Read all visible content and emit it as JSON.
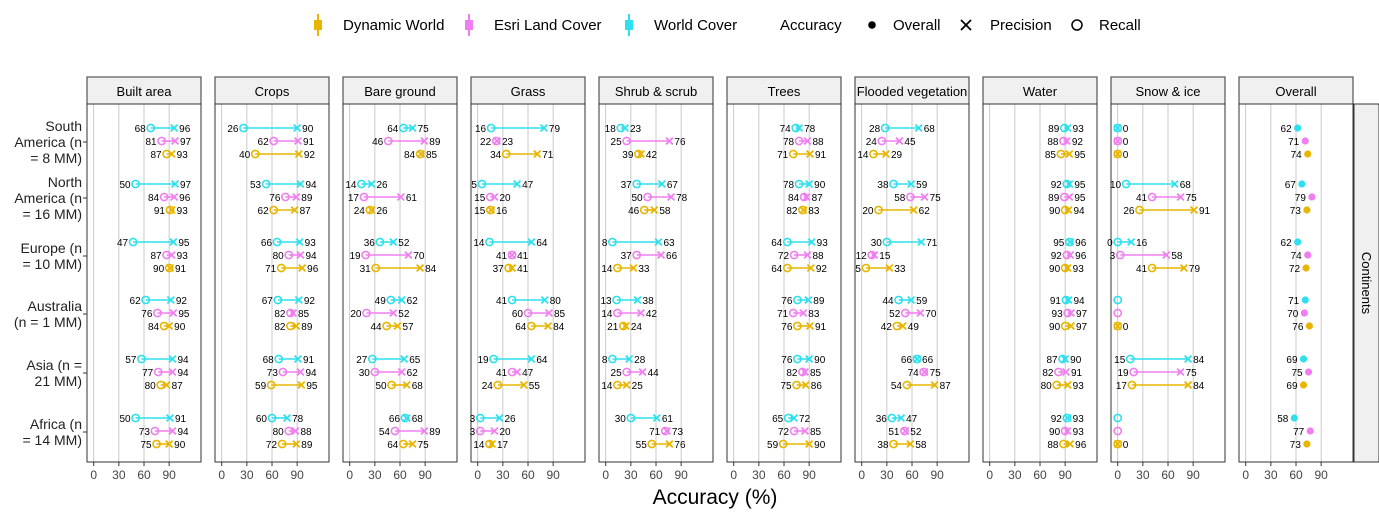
{
  "colors": {
    "dynamic": "#e8b500",
    "esri": "#f07ef0",
    "wc": "#2ee0ee",
    "grid": "#bdbdbd",
    "strip": "#f0f0f0"
  },
  "legend": {
    "datasets": [
      "Dynamic World",
      "Esri Land Cover",
      "World Cover"
    ],
    "accuracy_title": "Accuracy",
    "measures": [
      "Overall",
      "Precision",
      "Recall"
    ]
  },
  "xlabel": "Accuracy (%)",
  "facet_label": "Continents",
  "chart_data": {
    "type": "scatter",
    "xlabel": "Accuracy (%)",
    "xlim": [
      0,
      100
    ],
    "xticks": [
      0,
      30,
      60,
      90
    ],
    "grid": true,
    "legend_position": "top",
    "series": [
      {
        "name": "Dynamic World",
        "color": "#e8b500"
      },
      {
        "name": "Esri Land Cover",
        "color": "#f07ef0"
      },
      {
        "name": "World Cover",
        "color": "#2ee0ee"
      }
    ],
    "measures": [
      "Overall",
      "Precision",
      "Recall"
    ],
    "classes": [
      "Built area",
      "Crops",
      "Bare ground",
      "Grass",
      "Shrub & scrub",
      "Trees",
      "Flooded vegetation",
      "Water",
      "Snow & ice",
      "Overall"
    ],
    "regions": [
      "South America (n = 8 MM)",
      "North America (n = 16 MM)",
      "Europe (n = 10 MM)",
      "Australia (n = 1 MM)",
      "Asia (n = 21 MM)",
      "Africa (n = 14 MM)"
    ],
    "region_label_lines": [
      [
        "South",
        "America (n",
        "= 8 MM)"
      ],
      [
        "North",
        "America (n",
        "= 16 MM)"
      ],
      [
        "Europe (n",
        "= 10 MM)"
      ],
      [
        "Australia",
        "(n = 1 MM)"
      ],
      [
        "Asia (n =",
        "21 MM)"
      ],
      [
        "Africa (n",
        "= 14 MM)"
      ]
    ],
    "panels": [
      {
        "class": "Built area",
        "rows": [
          {
            "wc": [
              68,
              96
            ],
            "esri": [
              81,
              97
            ],
            "dw": [
              87,
              93
            ]
          },
          {
            "wc": [
              50,
              97
            ],
            "esri": [
              84,
              96
            ],
            "dw": [
              91,
              93
            ]
          },
          {
            "wc": [
              47,
              95
            ],
            "esri": [
              87,
              93
            ],
            "dw": [
              90,
              91
            ]
          },
          {
            "wc": [
              62,
              92
            ],
            "esri": [
              76,
              95
            ],
            "dw": [
              84,
              90
            ]
          },
          {
            "wc": [
              57,
              94
            ],
            "esri": [
              77,
              94
            ],
            "dw": [
              80,
              87
            ]
          },
          {
            "wc": [
              50,
              91
            ],
            "esri": [
              73,
              94
            ],
            "dw": [
              75,
              90
            ]
          }
        ]
      },
      {
        "class": "Crops",
        "rows": [
          {
            "wc": [
              26,
              90
            ],
            "esri": [
              62,
              91
            ],
            "dw": [
              40,
              92
            ]
          },
          {
            "wc": [
              53,
              94
            ],
            "esri": [
              76,
              89
            ],
            "dw": [
              62,
              87
            ]
          },
          {
            "wc": [
              66,
              93
            ],
            "esri": [
              80,
              94
            ],
            "dw": [
              71,
              96
            ]
          },
          {
            "wc": [
              67,
              92
            ],
            "esri": [
              82,
              85
            ],
            "dw": [
              82,
              89
            ]
          },
          {
            "wc": [
              68,
              91
            ],
            "esri": [
              73,
              94
            ],
            "dw": [
              59,
              95
            ]
          },
          {
            "wc": [
              60,
              78
            ],
            "esri": [
              80,
              88
            ],
            "dw": [
              72,
              89
            ]
          }
        ]
      },
      {
        "class": "Bare ground",
        "rows": [
          {
            "wc": [
              64,
              75
            ],
            "esri": [
              46,
              89
            ],
            "dw": [
              84,
              85
            ]
          },
          {
            "wc": [
              14,
              26
            ],
            "esri": [
              17,
              61
            ],
            "dw": [
              24,
              26
            ]
          },
          {
            "wc": [
              36,
              52
            ],
            "esri": [
              19,
              70
            ],
            "dw": [
              31,
              84
            ]
          },
          {
            "wc": [
              49,
              62
            ],
            "esri": [
              20,
              52
            ],
            "dw": [
              44,
              57
            ]
          },
          {
            "wc": [
              27,
              65
            ],
            "esri": [
              30,
              62
            ],
            "dw": [
              50,
              68
            ]
          },
          {
            "wc": [
              66,
              68
            ],
            "esri": [
              54,
              89
            ],
            "dw": [
              64,
              75
            ]
          }
        ]
      },
      {
        "class": "Grass",
        "rows": [
          {
            "wc": [
              16,
              79
            ],
            "esri": [
              22,
              23
            ],
            "dw": [
              34,
              71
            ]
          },
          {
            "wc": [
              5,
              47
            ],
            "esri": [
              15,
              20
            ],
            "dw": [
              15,
              16
            ]
          },
          {
            "wc": [
              14,
              64
            ],
            "esri": [
              41,
              41
            ],
            "dw": [
              37,
              41
            ]
          },
          {
            "wc": [
              41,
              80
            ],
            "esri": [
              60,
              85
            ],
            "dw": [
              64,
              84
            ]
          },
          {
            "wc": [
              19,
              64
            ],
            "esri": [
              41,
              47
            ],
            "dw": [
              24,
              55
            ]
          },
          {
            "wc": [
              3,
              26
            ],
            "esri": [
              3,
              20
            ],
            "dw": [
              14,
              17
            ]
          }
        ]
      },
      {
        "class": "Shrub & scrub",
        "rows": [
          {
            "wc": [
              18,
              23
            ],
            "esri": [
              25,
              76
            ],
            "dw": [
              39,
              42
            ]
          },
          {
            "wc": [
              37,
              67
            ],
            "esri": [
              50,
              78
            ],
            "dw": [
              46,
              58
            ]
          },
          {
            "wc": [
              8,
              63
            ],
            "esri": [
              37,
              66
            ],
            "dw": [
              14,
              33
            ]
          },
          {
            "wc": [
              13,
              38
            ],
            "esri": [
              14,
              42
            ],
            "dw": [
              21,
              24
            ]
          },
          {
            "wc": [
              8,
              28
            ],
            "esri": [
              25,
              44
            ],
            "dw": [
              14,
              25
            ]
          },
          {
            "wc": [
              30,
              61
            ],
            "esri": [
              71,
              73
            ],
            "dw": [
              55,
              76
            ]
          }
        ]
      },
      {
        "class": "Trees",
        "rows": [
          {
            "wc": [
              74,
              78
            ],
            "esri": [
              78,
              88
            ],
            "dw": [
              71,
              91
            ]
          },
          {
            "wc": [
              78,
              90
            ],
            "esri": [
              84,
              87
            ],
            "dw": [
              82,
              83
            ]
          },
          {
            "wc": [
              64,
              93
            ],
            "esri": [
              72,
              88
            ],
            "dw": [
              64,
              92
            ]
          },
          {
            "wc": [
              76,
              89
            ],
            "esri": [
              71,
              83
            ],
            "dw": [
              76,
              91
            ]
          },
          {
            "wc": [
              76,
              90
            ],
            "esri": [
              82,
              85
            ],
            "dw": [
              75,
              86
            ]
          },
          {
            "wc": [
              65,
              72
            ],
            "esri": [
              72,
              85
            ],
            "dw": [
              59,
              90
            ]
          }
        ]
      },
      {
        "class": "Flooded vegetation",
        "rows": [
          {
            "wc": [
              28,
              68
            ],
            "esri": [
              24,
              45
            ],
            "dw": [
              14,
              29
            ]
          },
          {
            "wc": [
              38,
              59
            ],
            "esri": [
              58,
              75
            ],
            "dw": [
              20,
              62
            ]
          },
          {
            "wc": [
              30,
              71
            ],
            "esri": [
              12,
              15
            ],
            "dw": [
              5,
              33
            ]
          },
          {
            "wc": [
              44,
              59
            ],
            "esri": [
              52,
              70
            ],
            "dw": [
              42,
              49
            ]
          },
          {
            "wc": [
              66,
              66
            ],
            "esri": [
              74,
              75
            ],
            "dw": [
              54,
              87
            ]
          },
          {
            "wc": [
              36,
              47
            ],
            "esri": [
              51,
              52
            ],
            "dw": [
              38,
              58
            ]
          }
        ]
      },
      {
        "class": "Water",
        "rows": [
          {
            "wc": [
              89,
              93
            ],
            "esri": [
              88,
              92
            ],
            "dw": [
              85,
              95
            ]
          },
          {
            "wc": [
              92,
              95
            ],
            "esri": [
              89,
              95
            ],
            "dw": [
              90,
              94
            ]
          },
          {
            "wc": [
              95,
              96
            ],
            "esri": [
              92,
              96
            ],
            "dw": [
              90,
              93
            ]
          },
          {
            "wc": [
              91,
              94
            ],
            "esri": [
              93,
              97
            ],
            "dw": [
              90,
              97
            ]
          },
          {
            "wc": [
              87,
              90
            ],
            "esri": [
              82,
              91
            ],
            "dw": [
              80,
              93
            ]
          },
          {
            "wc": [
              92,
              93
            ],
            "esri": [
              90,
              93
            ],
            "dw": [
              88,
              96
            ]
          }
        ]
      },
      {
        "class": "Snow & ice",
        "rows": [
          {
            "wc": [
              0,
              0
            ],
            "esri": [
              0,
              0
            ],
            "dw": [
              0,
              0
            ]
          },
          {
            "wc": [
              10,
              68
            ],
            "esri": [
              41,
              75
            ],
            "dw": [
              26,
              91
            ]
          },
          {
            "wc": [
              0,
              16
            ],
            "esri": [
              3,
              58
            ],
            "dw": [
              41,
              79
            ]
          },
          {
            "wc": [
              0,
              null
            ],
            "esri": [
              0,
              null
            ],
            "dw": [
              0,
              0
            ]
          },
          {
            "wc": [
              15,
              84
            ],
            "esri": [
              19,
              75
            ],
            "dw": [
              17,
              84
            ]
          },
          {
            "wc": [
              0,
              null
            ],
            "esri": [
              0,
              null
            ],
            "dw": [
              0,
              0
            ]
          }
        ]
      }
    ],
    "overall": [
      {
        "wc": 62,
        "esri": 71,
        "dw": 74
      },
      {
        "wc": 67,
        "esri": 79,
        "dw": 73
      },
      {
        "wc": 62,
        "esri": 74,
        "dw": 72
      },
      {
        "wc": 71,
        "esri": 70,
        "dw": 76
      },
      {
        "wc": 69,
        "esri": 75,
        "dw": 69
      },
      {
        "wc": 58,
        "esri": 77,
        "dw": 73
      }
    ]
  }
}
